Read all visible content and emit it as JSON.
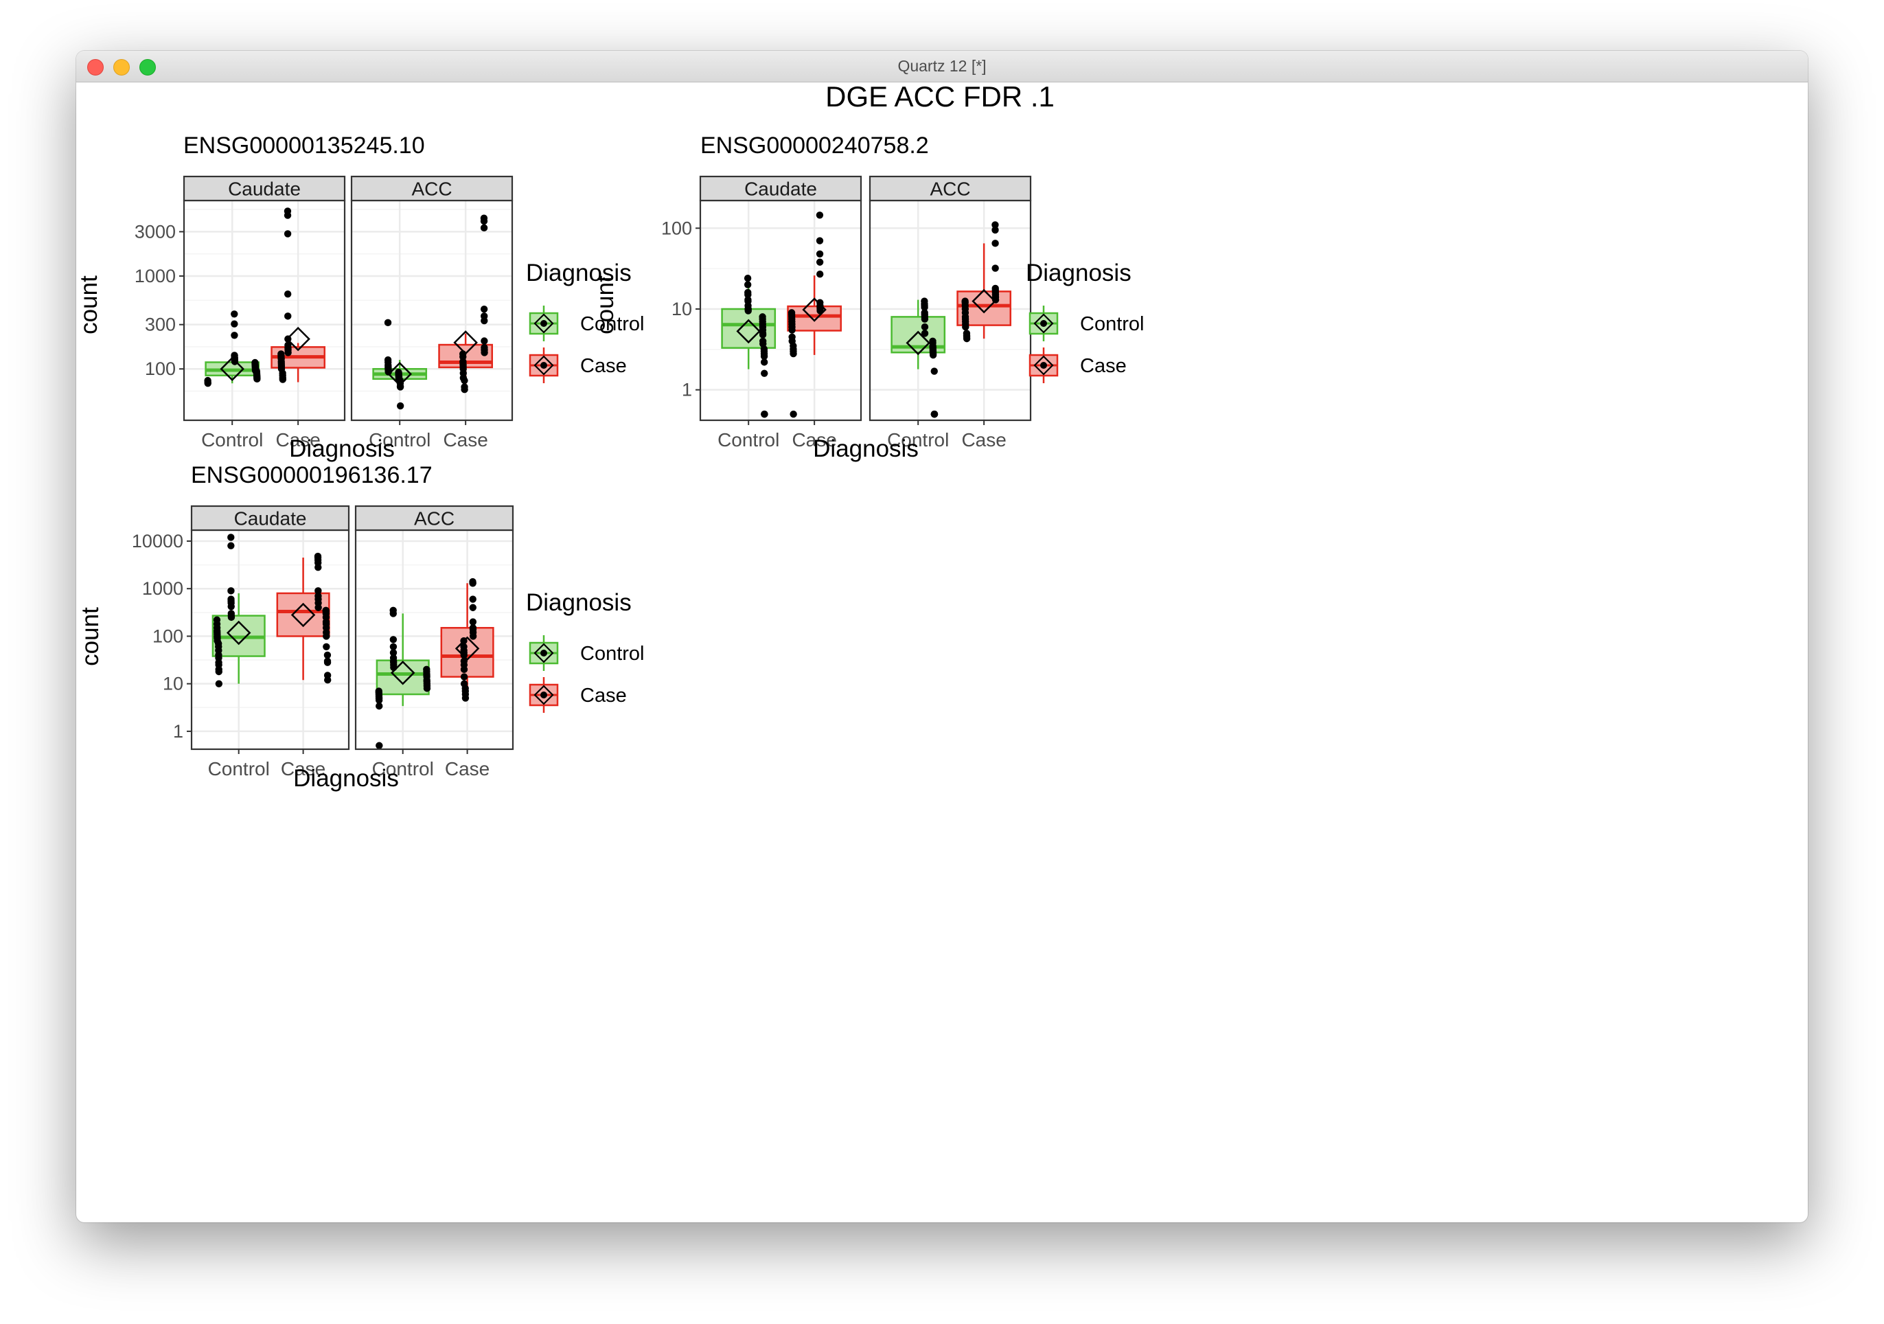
{
  "window": {
    "title": "Quartz 12 [*]"
  },
  "figure_title": "DGE ACC FDR .1",
  "colors": {
    "control_fill": "#b8e6aa",
    "control_line": "#4cbb31",
    "case_fill": "#f5aaa5",
    "case_line": "#e4281c",
    "strip_bg": "#d9d9d9",
    "grid": "#ebebeb"
  },
  "legend": {
    "title": "Diagnosis",
    "items": [
      "Control",
      "Case"
    ]
  },
  "chart_data": [
    {
      "type": "box",
      "title": "ENSG00000135245.10",
      "xlabel": "Diagnosis",
      "ylabel": "count",
      "y_scale": "log10",
      "ylim": [
        28,
        6500
      ],
      "yticks": [
        100,
        300,
        1000,
        3000
      ],
      "ytick_labels": [
        "100",
        "300",
        "1000",
        "3000"
      ],
      "categories": [
        "Control",
        "Case"
      ],
      "facets": [
        {
          "label": "Caudate",
          "groups": [
            {
              "name": "Control",
              "q1": 85,
              "median": 97,
              "q3": 118,
              "whisker_low": 70,
              "whisker_high": 140,
              "mean": 100,
              "points": [
                390,
                305,
                230,
                140,
                138,
                132,
                130,
                125,
                122,
                120,
                117,
                115,
                112,
                110,
                108,
                105,
                103,
                100,
                98,
                96,
                95,
                93,
                91,
                90,
                88,
                86,
                84,
                82,
                80,
                78,
                75,
                72,
                70
              ]
            },
            {
              "name": "Case",
              "q1": 103,
              "median": 135,
              "q3": 172,
              "whisker_low": 72,
              "whisker_high": 190,
              "mean": 210,
              "points": [
                5000,
                4500,
                2850,
                640,
                370,
                210,
                180,
                168,
                160,
                150,
                145,
                140,
                135,
                130,
                128,
                120,
                115,
                110,
                105,
                100,
                90,
                85,
                80,
                77
              ]
            }
          ]
        },
        {
          "label": "ACC",
          "groups": [
            {
              "name": "Control",
              "q1": 78,
              "median": 88,
              "q3": 100,
              "whisker_low": 64,
              "whisker_high": 125,
              "mean": 88,
              "points": [
                315,
                125,
                118,
                110,
                105,
                102,
                100,
                97,
                95,
                93,
                92,
                90,
                88,
                87,
                85,
                83,
                82,
                80,
                78,
                76,
                75,
                73,
                70,
                65,
                64,
                40
              ]
            },
            {
              "name": "Case",
              "q1": 104,
              "median": 118,
              "q3": 182,
              "whisker_low": 60,
              "whisker_high": 240,
              "mean": 192,
              "points": [
                4200,
                3900,
                3300,
                440,
                370,
                330,
                200,
                170,
                160,
                150,
                145,
                135,
                120,
                118,
                112,
                110,
                105,
                100,
                90,
                80,
                75,
                64,
                60
              ]
            }
          ]
        }
      ]
    },
    {
      "type": "box",
      "title": "ENSG00000240758.2",
      "xlabel": "Diagnosis",
      "ylabel": "count",
      "y_scale": "log10",
      "ylim": [
        0.42,
        220
      ],
      "yticks": [
        1,
        10,
        100
      ],
      "ytick_labels": [
        "1",
        "10",
        "100"
      ],
      "categories": [
        "Control",
        "Case"
      ],
      "facets": [
        {
          "label": "Caudate",
          "groups": [
            {
              "name": "Control",
              "q1": 3.3,
              "median": 6.4,
              "q3": 10.0,
              "whisker_low": 1.8,
              "whisker_high": 23,
              "mean": 5.3,
              "points": [
                24,
                20,
                16,
                15,
                13,
                12.5,
                11,
                10,
                10,
                9.5,
                8,
                7.5,
                7,
                6.5,
                6,
                5.5,
                5,
                4.8,
                4,
                3.7,
                3.2,
                3.0,
                2.8,
                2.6,
                2.2,
                1.6,
                0.5,
                0.5,
                0.5
              ]
            },
            {
              "name": "Case",
              "q1": 5.4,
              "median": 8.2,
              "q3": 10.8,
              "whisker_low": 2.7,
              "whisker_high": 26,
              "mean": 9.8,
              "points": [
                145,
                70,
                48,
                38,
                27,
                12,
                11,
                10.5,
                10,
                9.5,
                9,
                8.5,
                8,
                7.5,
                7,
                6.5,
                6,
                5.5,
                4.5,
                4,
                3.5,
                3.2,
                3.0,
                2.8,
                0.5
              ]
            }
          ]
        },
        {
          "label": "ACC",
          "groups": [
            {
              "name": "Control",
              "q1": 2.9,
              "median": 3.4,
              "q3": 8.0,
              "whisker_low": 1.8,
              "whisker_high": 13,
              "mean": 3.8,
              "points": [
                12.5,
                11.5,
                11,
                10.5,
                9,
                8.5,
                8,
                7.5,
                6,
                5,
                4,
                3.8,
                3.5,
                3.4,
                3.3,
                3.1,
                3.0,
                2.9,
                2.8,
                2.7,
                1.7,
                0.5,
                0.5,
                0.5,
                0.5
              ]
            },
            {
              "name": "Case",
              "q1": 6.3,
              "median": 11.0,
              "q3": 16.5,
              "whisker_low": 4.3,
              "whisker_high": 65,
              "mean": 12.5,
              "points": [
                110,
                95,
                65,
                32,
                18,
                17,
                16,
                15,
                14,
                13,
                12.5,
                12,
                11,
                10,
                9,
                8,
                7.5,
                7,
                6.5,
                6,
                5,
                4.7,
                4.5,
                4.3
              ]
            }
          ]
        }
      ]
    },
    {
      "type": "box",
      "title": "ENSG00000196136.17",
      "xlabel": "Diagnosis",
      "ylabel": "count",
      "y_scale": "log10",
      "ylim": [
        0.42,
        17000
      ],
      "yticks": [
        1,
        10,
        100,
        1000,
        10000
      ],
      "ytick_labels": [
        "1",
        "10",
        "100",
        "1000",
        "10000"
      ],
      "categories": [
        "Control",
        "Case"
      ],
      "facets": [
        {
          "label": "Caudate",
          "groups": [
            {
              "name": "Control",
              "q1": 38,
              "median": 95,
              "q3": 270,
              "whisker_low": 10,
              "whisker_high": 800,
              "mean": 118,
              "points": [
                12000,
                8000,
                900,
                600,
                550,
                500,
                420,
                300,
                270,
                250,
                220,
                180,
                150,
                130,
                120,
                110,
                100,
                95,
                90,
                80,
                70,
                60,
                50,
                40,
                35,
                28,
                25,
                20,
                18,
                10
              ]
            },
            {
              "name": "Case",
              "q1": 100,
              "median": 330,
              "q3": 800,
              "whisker_low": 12,
              "whisker_high": 4500,
              "mean": 280,
              "points": [
                4800,
                4500,
                4000,
                3500,
                2800,
                900,
                700,
                600,
                500,
                400,
                350,
                330,
                300,
                250,
                200,
                180,
                150,
                120,
                100,
                60,
                40,
                30,
                28,
                15,
                12
              ]
            }
          ]
        },
        {
          "label": "ACC",
          "groups": [
            {
              "name": "Control",
              "q1": 6,
              "median": 16,
              "q3": 31,
              "whisker_low": 3.4,
              "whisker_high": 300,
              "mean": 17,
              "points": [
                350,
                300,
                85,
                60,
                45,
                35,
                30,
                28,
                25,
                22,
                20,
                18,
                16,
                15,
                14,
                12,
                11,
                10,
                9,
                8,
                7,
                6.5,
                6,
                5.5,
                5,
                5,
                4.5,
                3.4,
                0.5
              ]
            },
            {
              "name": "Case",
              "q1": 14,
              "median": 38,
              "q3": 150,
              "whisker_low": 5,
              "whisker_high": 1300,
              "mean": 55,
              "points": [
                1400,
                1300,
                1300,
                600,
                400,
                200,
                150,
                140,
                120,
                100,
                80,
                60,
                50,
                45,
                40,
                30,
                25,
                20,
                14,
                10,
                8,
                7,
                6,
                5
              ]
            }
          ]
        }
      ]
    }
  ]
}
